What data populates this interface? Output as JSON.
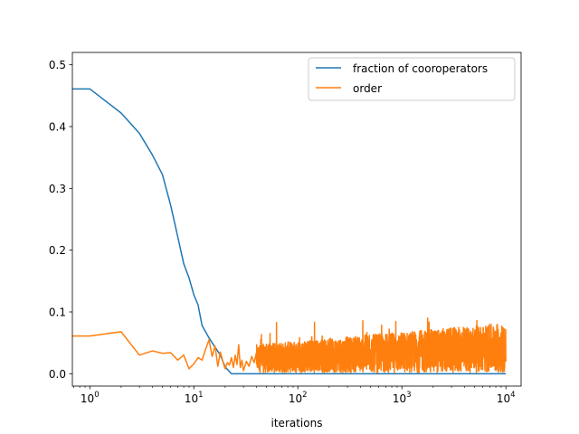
{
  "chart_data": {
    "type": "line",
    "title": "",
    "xlabel": "iterations",
    "ylabel": "",
    "x_scale": "log",
    "xlim": [
      0.68,
      14000
    ],
    "ylim": [
      -0.02,
      0.52
    ],
    "grid": false,
    "legend_position": "top-right",
    "x_ticks": [
      {
        "value": 1,
        "base": "10",
        "exp": "0"
      },
      {
        "value": 10,
        "base": "10",
        "exp": "1"
      },
      {
        "value": 100,
        "base": "10",
        "exp": "2"
      },
      {
        "value": 1000,
        "base": "10",
        "exp": "3"
      },
      {
        "value": 10000,
        "base": "10",
        "exp": "4"
      }
    ],
    "y_ticks": [
      {
        "value": 0.0,
        "label": "0.0"
      },
      {
        "value": 0.1,
        "label": "0.1"
      },
      {
        "value": 0.2,
        "label": "0.2"
      },
      {
        "value": 0.3,
        "label": "0.3"
      },
      {
        "value": 0.4,
        "label": "0.4"
      },
      {
        "value": 0.5,
        "label": "0.5"
      }
    ],
    "series": [
      {
        "name": "fraction of cooroperators",
        "color": "#1f77b4",
        "x": [
          0.68,
          1,
          2,
          3,
          4,
          5,
          6,
          7,
          8,
          9,
          10,
          11,
          12,
          14,
          16,
          18,
          20,
          23,
          30,
          50,
          100,
          1000,
          10000
        ],
        "y": [
          0.461,
          0.461,
          0.422,
          0.389,
          0.354,
          0.322,
          0.272,
          0.222,
          0.178,
          0.155,
          0.128,
          0.111,
          0.078,
          0.058,
          0.043,
          0.03,
          0.011,
          0.0,
          0.0,
          0.0,
          0.0,
          0.0,
          0.0
        ]
      },
      {
        "name": "order",
        "color": "#ff7f0e",
        "x": [
          0.68,
          1,
          2,
          3,
          4,
          5,
          6,
          7,
          8,
          9,
          10,
          11,
          12,
          13,
          14,
          15,
          16,
          17,
          18,
          19,
          20,
          21,
          22,
          23,
          24,
          25,
          26,
          27,
          28,
          29,
          30,
          32,
          34,
          36,
          38,
          40
        ],
        "y": [
          0.061,
          0.061,
          0.068,
          0.03,
          0.037,
          0.033,
          0.034,
          0.022,
          0.03,
          0.008,
          0.016,
          0.026,
          0.022,
          0.04,
          0.055,
          0.028,
          0.045,
          0.012,
          0.035,
          0.02,
          0.008,
          0.018,
          0.014,
          0.026,
          0.01,
          0.03,
          0.015,
          0.047,
          0.01,
          0.022,
          0.005,
          0.02,
          0.012,
          0.028,
          0.018,
          0.034
        ],
        "noise_from": 40,
        "noise_to": 10000,
        "noise_min": 0.002,
        "noise_max": 0.098
      }
    ]
  }
}
